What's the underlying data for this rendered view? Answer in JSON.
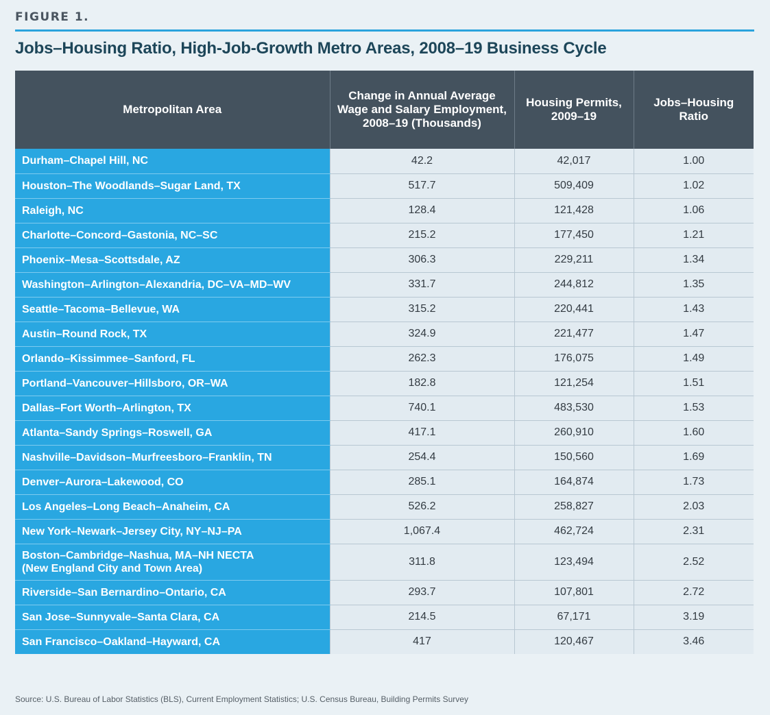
{
  "figure_label": "FIGURE 1.",
  "title": "Jobs–Housing Ratio, High-Job-Growth Metro Areas, 2008–19 Business Cycle",
  "table": {
    "headers": [
      "Metropolitan Area",
      "Change in Annual Average Wage and Salary Employment, 2008–19 (Thousands)",
      "Housing Permits, 2009–19",
      "Jobs–Housing Ratio"
    ],
    "rows": [
      {
        "area": "Durham–Chapel Hill, NC",
        "employment_change": "42.2",
        "permits": "42,017",
        "ratio": "1.00"
      },
      {
        "area": "Houston–The Woodlands–Sugar Land, TX",
        "employment_change": "517.7",
        "permits": "509,409",
        "ratio": "1.02"
      },
      {
        "area": "Raleigh, NC",
        "employment_change": "128.4",
        "permits": "121,428",
        "ratio": "1.06"
      },
      {
        "area": "Charlotte–Concord–Gastonia, NC–SC",
        "employment_change": "215.2",
        "permits": "177,450",
        "ratio": "1.21"
      },
      {
        "area": "Phoenix–Mesa–Scottsdale, AZ",
        "employment_change": "306.3",
        "permits": "229,211",
        "ratio": "1.34"
      },
      {
        "area": "Washington–Arlington–Alexandria, DC–VA–MD–WV",
        "employment_change": "331.7",
        "permits": "244,812",
        "ratio": "1.35"
      },
      {
        "area": "Seattle–Tacoma–Bellevue, WA",
        "employment_change": "315.2",
        "permits": "220,441",
        "ratio": "1.43"
      },
      {
        "area": "Austin–Round Rock, TX",
        "employment_change": "324.9",
        "permits": "221,477",
        "ratio": "1.47"
      },
      {
        "area": "Orlando–Kissimmee–Sanford, FL",
        "employment_change": "262.3",
        "permits": "176,075",
        "ratio": "1.49"
      },
      {
        "area": "Portland–Vancouver–Hillsboro, OR–WA",
        "employment_change": "182.8",
        "permits": "121,254",
        "ratio": "1.51"
      },
      {
        "area": "Dallas–Fort Worth–Arlington, TX",
        "employment_change": "740.1",
        "permits": "483,530",
        "ratio": "1.53"
      },
      {
        "area": "Atlanta–Sandy Springs–Roswell, GA",
        "employment_change": "417.1",
        "permits": "260,910",
        "ratio": "1.60"
      },
      {
        "area": "Nashville–Davidson–Murfreesboro–Franklin, TN",
        "employment_change": "254.4",
        "permits": "150,560",
        "ratio": "1.69"
      },
      {
        "area": "Denver–Aurora–Lakewood, CO",
        "employment_change": "285.1",
        "permits": "164,874",
        "ratio": "1.73"
      },
      {
        "area": "Los Angeles–Long Beach–Anaheim, CA",
        "employment_change": "526.2",
        "permits": "258,827",
        "ratio": "2.03"
      },
      {
        "area": "New York–Newark–Jersey City, NY–NJ–PA",
        "employment_change": "1,067.4",
        "permits": "462,724",
        "ratio": "2.31"
      },
      {
        "area": "Boston–Cambridge–Nashua, MA–NH NECTA",
        "area_line2": "(New England City and Town Area)",
        "employment_change": "311.8",
        "permits": "123,494",
        "ratio": "2.52"
      },
      {
        "area": "Riverside–San Bernardino–Ontario, CA",
        "employment_change": "293.7",
        "permits": "107,801",
        "ratio": "2.72"
      },
      {
        "area": "San Jose–Sunnyvale–Santa Clara, CA",
        "employment_change": "214.5",
        "permits": "67,171",
        "ratio": "3.19"
      },
      {
        "area": "San Francisco–Oakland–Hayward, CA",
        "employment_change": "417",
        "permits": "120,467",
        "ratio": "3.46"
      }
    ]
  },
  "source": "Source: U.S. Bureau of Labor Statistics (BLS), Current Employment Statistics; U.S. Census Bureau, Building Permits Survey"
}
